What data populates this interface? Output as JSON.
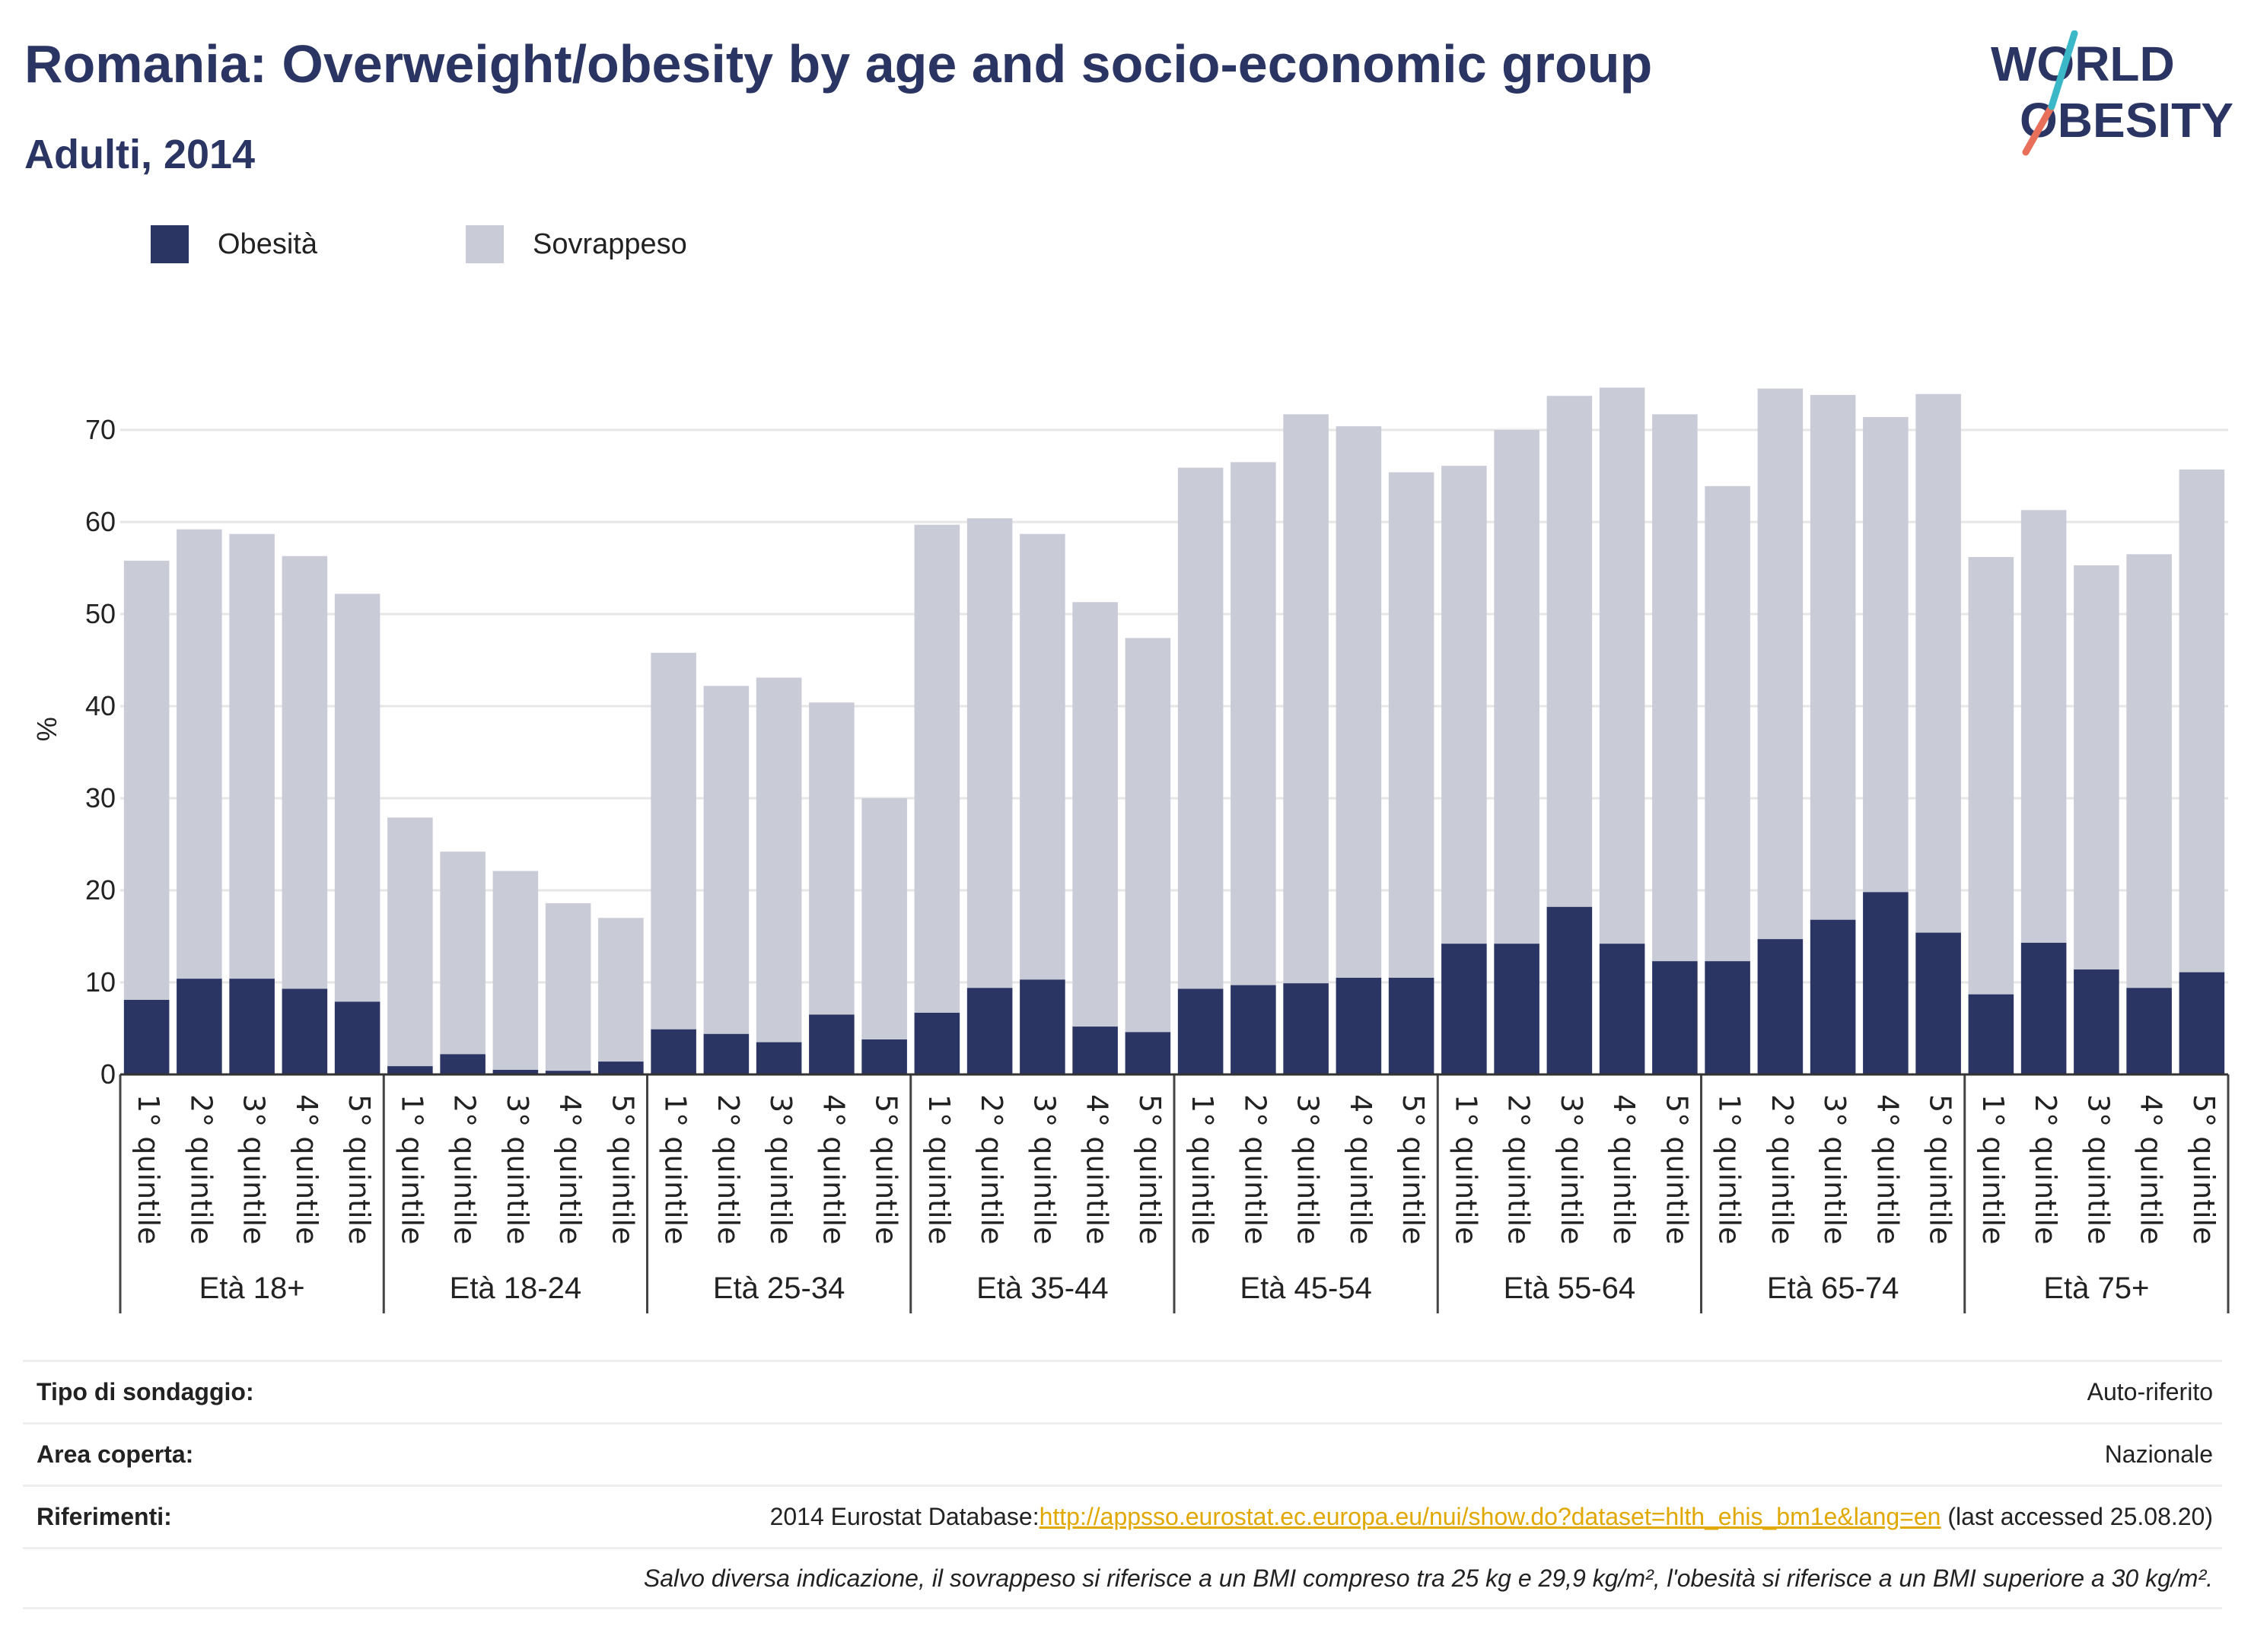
{
  "title": "Romania: Overweight/obesity by age and socio-economic group",
  "subtitle": "Adulti, 2014",
  "logo": {
    "line1": "WORLD",
    "line2": "OBESITY"
  },
  "colors": {
    "obesity": "#2a3563",
    "overweight": "#c9cbd7",
    "title": "#2a3563",
    "link": "#e0a800"
  },
  "legend": [
    {
      "label": "Obesità",
      "color": "#2a3563"
    },
    {
      "label": "Sovrappeso",
      "color": "#c9cbd7"
    }
  ],
  "chart_data": {
    "type": "bar",
    "stacked": true,
    "ylabel": "%",
    "ylim": [
      0,
      75
    ],
    "yticks": [
      0,
      10,
      20,
      30,
      40,
      50,
      60,
      70
    ],
    "grid": true,
    "legend_position": "top-left",
    "groups": [
      "Età 18+",
      "Età 18-24",
      "Età 25-34",
      "Età 35-44",
      "Età 45-54",
      "Età 55-64",
      "Età 65-74",
      "Età 75+"
    ],
    "categories": [
      "1° quintile",
      "2° quintile",
      "3° quintile",
      "4° quintile",
      "5° quintile"
    ],
    "series": [
      {
        "name": "Obesità",
        "values": [
          [
            8.1,
            10.4,
            10.4,
            9.3,
            7.9
          ],
          [
            0.9,
            2.2,
            0.5,
            0.4,
            1.4
          ],
          [
            4.9,
            4.4,
            3.5,
            6.5,
            3.8
          ],
          [
            6.7,
            9.4,
            10.3,
            5.2,
            4.6
          ],
          [
            9.3,
            9.7,
            9.9,
            10.5,
            10.5
          ],
          [
            14.2,
            14.2,
            18.2,
            14.2,
            12.3
          ],
          [
            12.3,
            14.7,
            16.8,
            19.8,
            15.4
          ],
          [
            8.7,
            14.3,
            11.4,
            9.4,
            11.1
          ]
        ]
      },
      {
        "name": "Sovrappeso",
        "values": [
          [
            47.7,
            48.8,
            48.3,
            47.0,
            44.3
          ],
          [
            27.0,
            22.0,
            21.6,
            18.2,
            15.6
          ],
          [
            40.9,
            37.8,
            39.6,
            33.9,
            26.2
          ],
          [
            53.0,
            51.0,
            48.4,
            46.1,
            42.8
          ],
          [
            56.6,
            56.8,
            61.8,
            59.9,
            54.9
          ],
          [
            51.9,
            55.8,
            55.5,
            60.4,
            59.4
          ],
          [
            51.6,
            59.8,
            57.0,
            51.6,
            58.5
          ],
          [
            47.5,
            47.0,
            43.9,
            47.1,
            54.6
          ]
        ]
      }
    ]
  },
  "info": [
    {
      "label": "Tipo di sondaggio:",
      "value": "Auto-riferito"
    },
    {
      "label": "Area coperta:",
      "value": "Nazionale"
    },
    {
      "label": "Riferimenti:",
      "prefix": "2014 Eurostat Database:",
      "link": "http://appsso.eurostat.ec.europa.eu/nui/show.do?dataset=hlth_ehis_bm1e&lang=en",
      "suffix": " (last accessed 25.08.20)"
    },
    {
      "label": "",
      "value": "Salvo diversa indicazione, il sovrappeso si riferisce a un BMI compreso tra 25 kg e 29,9 kg/m², l'obesità si riferisce a un BMI superiore a 30 kg/m²."
    }
  ]
}
